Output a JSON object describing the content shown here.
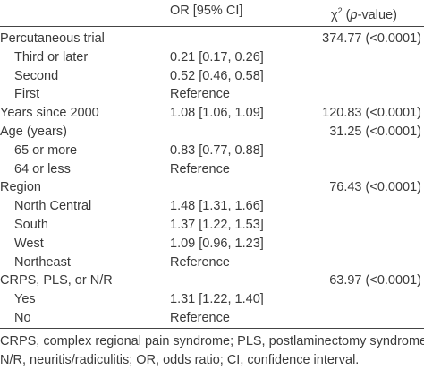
{
  "table": {
    "header": [
      "OR [95% CI]",
      [
        "χ",
        "2",
        " (",
        "p",
        "-value)"
      ]
    ],
    "rows": [
      {
        "level": 0,
        "cells": [
          "Percutaneous trial",
          "",
          "374.77 (<0.0001)"
        ]
      },
      {
        "level": 1,
        "cells": [
          "Third or later",
          "0.21 [0.17, 0.26]",
          ""
        ]
      },
      {
        "level": 1,
        "cells": [
          "Second",
          "0.52 [0.46, 0.58]",
          ""
        ]
      },
      {
        "level": 1,
        "cells": [
          "First",
          "Reference",
          ""
        ]
      },
      {
        "level": 0,
        "cells": [
          "Years since 2000",
          "1.08 [1.06, 1.09]",
          "120.83 (<0.0001)"
        ]
      },
      {
        "level": 0,
        "cells": [
          "Age (years)",
          "",
          "31.25 (<0.0001)"
        ]
      },
      {
        "level": 1,
        "cells": [
          "65 or more",
          "0.83 [0.77, 0.88]",
          ""
        ]
      },
      {
        "level": 1,
        "cells": [
          "64 or less",
          "Reference",
          ""
        ]
      },
      {
        "level": 0,
        "cells": [
          "Region",
          "",
          "76.43 (<0.0001)"
        ]
      },
      {
        "level": 1,
        "cells": [
          "North Central",
          "1.48 [1.31, 1.66]",
          ""
        ]
      },
      {
        "level": 1,
        "cells": [
          "South",
          "1.37 [1.22, 1.53]",
          ""
        ]
      },
      {
        "level": 1,
        "cells": [
          "West",
          "1.09 [0.96, 1.23]",
          ""
        ]
      },
      {
        "level": 1,
        "cells": [
          "Northeast",
          "Reference",
          ""
        ]
      },
      {
        "level": 0,
        "cells": [
          "CRPS, PLS, or N/R",
          "",
          "63.97 (<0.0001)"
        ]
      },
      {
        "level": 1,
        "cells": [
          "Yes",
          "1.31 [1.22, 1.40]",
          ""
        ]
      },
      {
        "level": 1,
        "cells": [
          "No",
          "Reference",
          ""
        ]
      }
    ],
    "footnote": [
      "CRPS, complex regional pain syndrome; PLS, postlaminectomy syndrome;",
      "N/R, neuritis/radiculitis; OR, odds ratio; CI, confidence interval."
    ]
  }
}
